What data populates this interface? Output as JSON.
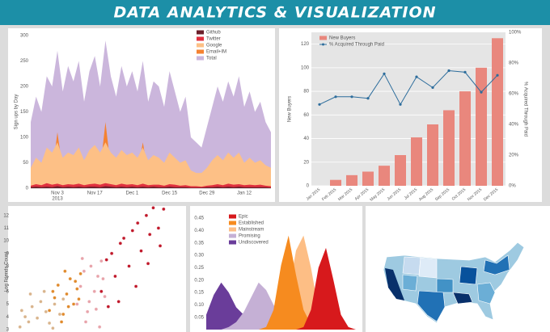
{
  "header": {
    "title": "DATA ANALYTICS & VISUALIZATION"
  },
  "chart_data": [
    {
      "type": "area",
      "y_label": "Sign ups by Day",
      "categories": [
        null,
        null,
        null,
        null,
        null,
        "Nov 3",
        null,
        null,
        null,
        null,
        null,
        null,
        "Nov 17",
        null,
        null,
        null,
        null,
        null,
        null,
        "Dec 1",
        null,
        null,
        null,
        null,
        null,
        null,
        "Dec 15",
        null,
        null,
        null,
        null,
        null,
        null,
        "Dec 29",
        null,
        null,
        null,
        null,
        null,
        null,
        "Jan 12",
        null,
        null,
        null,
        null,
        null
      ],
      "year": "2013",
      "ylim": [
        0,
        300
      ],
      "yticks": [
        0,
        50,
        100,
        150,
        200,
        250,
        300
      ],
      "legend": "upper right",
      "series": [
        {
          "name": "Github",
          "color": "#6b1f2a",
          "values": [
            2,
            3,
            2,
            3,
            2,
            4,
            2,
            3,
            2,
            3,
            2,
            3,
            3,
            2,
            4,
            3,
            2,
            3,
            2,
            3,
            2,
            3,
            2,
            3,
            2,
            2,
            3,
            2,
            2,
            2,
            1,
            1,
            1,
            2,
            2,
            3,
            2,
            3,
            2,
            3,
            2,
            2,
            2,
            2,
            2,
            1
          ]
        },
        {
          "name": "Twitter",
          "color": "#e0303f",
          "values": [
            5,
            8,
            6,
            10,
            7,
            9,
            6,
            8,
            7,
            9,
            6,
            8,
            9,
            7,
            10,
            8,
            6,
            9,
            7,
            8,
            6,
            9,
            6,
            7,
            7,
            5,
            8,
            7,
            5,
            6,
            4,
            4,
            3,
            5,
            6,
            8,
            6,
            9,
            7,
            8,
            6,
            7,
            6,
            7,
            5,
            4
          ]
        },
        {
          "name": "Google",
          "color": "#fdc086",
          "values": [
            40,
            60,
            50,
            80,
            70,
            90,
            60,
            70,
            65,
            80,
            55,
            75,
            85,
            70,
            90,
            70,
            60,
            75,
            65,
            70,
            60,
            80,
            55,
            65,
            60,
            50,
            70,
            60,
            50,
            55,
            35,
            30,
            30,
            40,
            55,
            65,
            55,
            70,
            60,
            70,
            50,
            60,
            50,
            55,
            45,
            40
          ]
        },
        {
          "name": "Email+IM",
          "color": "#f58231",
          "values": [
            20,
            30,
            25,
            60,
            30,
            110,
            35,
            40,
            30,
            80,
            30,
            45,
            50,
            35,
            130,
            40,
            30,
            50,
            35,
            45,
            30,
            90,
            30,
            35,
            30,
            25,
            60,
            30,
            25,
            30,
            20,
            15,
            15,
            20,
            30,
            40,
            30,
            70,
            35,
            45,
            30,
            35,
            30,
            35,
            25,
            20
          ]
        },
        {
          "name": "Total",
          "color": "#cbb6dc",
          "values": [
            130,
            180,
            150,
            220,
            200,
            270,
            190,
            240,
            210,
            250,
            170,
            230,
            260,
            200,
            290,
            220,
            180,
            240,
            200,
            230,
            190,
            250,
            170,
            210,
            200,
            160,
            230,
            190,
            150,
            180,
            100,
            90,
            80,
            120,
            160,
            200,
            170,
            210,
            180,
            220,
            160,
            190,
            150,
            170,
            130,
            110
          ]
        }
      ]
    },
    {
      "type": "bar_line",
      "y_label": "New Buyers",
      "y2_label": "% Acquired Through Paid",
      "categories": [
        "Jan 2015",
        "Feb 2015",
        "Mar 2015",
        "Apr 2015",
        "May 2015",
        "Jun 2015",
        "Jul 2015",
        "Aug 2015",
        "Sep 2015",
        "Oct 2015",
        "Nov 2015",
        "Dec 2015"
      ],
      "ylim": [
        0,
        130
      ],
      "yticks": [
        0,
        20,
        40,
        60,
        80,
        100,
        120
      ],
      "y2lim": [
        0,
        100
      ],
      "y2ticks": [
        {
          "value": 0,
          "label": "0%"
        },
        {
          "value": 20,
          "label": "20%"
        },
        {
          "value": 40,
          "label": "40%"
        },
        {
          "value": 60,
          "label": "60%"
        },
        {
          "value": 80,
          "label": "80%"
        },
        {
          "value": 100,
          "label": "100%"
        }
      ],
      "grid": true,
      "legend": "upper left",
      "series": [
        {
          "name": "New Buyers",
          "color": "#e9877d",
          "values": [
            0,
            5,
            9,
            12,
            17,
            26,
            41,
            52,
            64,
            80,
            100,
            125
          ]
        },
        {
          "name": "% Acquired Through Paid",
          "color": "#2d6d9c",
          "axis": "y2",
          "values": [
            53,
            58,
            58,
            57,
            73,
            53,
            71,
            64,
            75,
            74,
            61,
            72
          ]
        }
      ]
    },
    {
      "type": "scatter",
      "y_label": "Log Friends Count",
      "xlim": [
        0,
        10
      ],
      "ylim": [
        2.8,
        12.3
      ],
      "yticks": [
        3,
        4,
        5,
        6,
        7,
        8,
        9,
        10,
        11,
        12
      ],
      "series": [
        {
          "color": "#d9b48c",
          "x": [
            0.5,
            0.8,
            1.0,
            1.2,
            1.5,
            1.7,
            2.0,
            2.2,
            2.5,
            2.8,
            1.1,
            1.9,
            0.6,
            2.4,
            3.0
          ],
          "values": [
            3.2,
            4.0,
            3.6,
            4.8,
            3.9,
            5.2,
            4.4,
            3.5,
            5.0,
            4.2,
            5.8,
            6.0,
            4.5,
            3.1,
            5.4
          ]
        },
        {
          "color": "#e08a2c",
          "x": [
            2.2,
            2.5,
            2.7,
            3.0,
            3.2,
            3.4,
            3.6,
            3.8,
            4.0,
            2.9,
            3.3,
            3.7,
            2.4,
            3.1,
            3.9
          ],
          "values": [
            4.5,
            5.5,
            6.5,
            4.2,
            5.8,
            7.0,
            5.0,
            6.2,
            7.4,
            3.6,
            4.8,
            6.8,
            6.0,
            7.6,
            5.4
          ]
        },
        {
          "color": "#e8a3aa",
          "x": [
            3.8,
            4.0,
            4.2,
            4.4,
            4.6,
            4.8,
            5.0,
            5.2,
            5.4,
            4.1,
            4.5,
            4.9,
            5.3,
            4.3,
            5.1
          ],
          "values": [
            5.0,
            6.4,
            7.6,
            4.4,
            8.0,
            6.0,
            7.2,
            8.4,
            5.6,
            8.6,
            5.2,
            4.6,
            7.0,
            3.6,
            3.2
          ]
        },
        {
          "color": "#c0182a",
          "x": [
            5.2,
            5.5,
            5.8,
            6.0,
            6.3,
            6.5,
            6.8,
            7.0,
            7.3,
            7.5,
            7.8,
            8.0,
            8.2,
            8.5,
            8.8,
            5.6,
            6.2,
            7.2,
            7.9,
            8.6
          ],
          "values": [
            6.0,
            8.5,
            9.0,
            7.2,
            9.8,
            10.2,
            8.0,
            10.8,
            11.4,
            9.2,
            12.0,
            10.5,
            12.6,
            11.0,
            12.5,
            4.8,
            5.2,
            6.4,
            8.2,
            9.6
          ]
        }
      ]
    },
    {
      "type": "density",
      "x": [
        0,
        1,
        2,
        3,
        4,
        5,
        6,
        7,
        8,
        9,
        10,
        11,
        12,
        13,
        14,
        15,
        16,
        17,
        18,
        19,
        20
      ],
      "xlim": [
        0,
        20
      ],
      "ylim": [
        0,
        0.47
      ],
      "yticks": [
        0.05,
        {
          "value": 0.1,
          "label": "0.10"
        },
        0.15,
        {
          "value": 0.2,
          "label": "0.20"
        },
        0.25,
        {
          "value": 0.3,
          "label": "0.30"
        },
        0.35,
        {
          "value": 0.4,
          "label": "0.40"
        },
        0.45
      ],
      "legend": "upper left",
      "series": [
        {
          "name": "Epic",
          "color": "#d7191c",
          "values": [
            0,
            0,
            0,
            0,
            0,
            0,
            0,
            0,
            0,
            0,
            0,
            0,
            0,
            0.01,
            0.08,
            0.25,
            0.33,
            0.2,
            0.06,
            0.01,
            0
          ]
        },
        {
          "name": "Established",
          "color": "#f68b1f",
          "values": [
            0,
            0,
            0,
            0,
            0,
            0,
            0,
            0,
            0.01,
            0.08,
            0.26,
            0.38,
            0.22,
            0.08,
            0.02,
            0.01,
            0,
            0,
            0,
            0,
            0
          ]
        },
        {
          "name": "Mainstream",
          "color": "#fdbe85",
          "values": [
            0,
            0,
            0,
            0,
            0,
            0,
            0,
            0,
            0,
            0.01,
            0.03,
            0.15,
            0.32,
            0.38,
            0.25,
            0.08,
            0.02,
            0,
            0,
            0,
            0
          ]
        },
        {
          "name": "Promising",
          "color": "#c5b0d5",
          "values": [
            0,
            0,
            0,
            0.01,
            0.03,
            0.07,
            0.13,
            0.19,
            0.16,
            0.1,
            0.05,
            0.02,
            0.01,
            0,
            0,
            0,
            0,
            0,
            0,
            0,
            0
          ]
        },
        {
          "name": "Undiscovered",
          "color": "#6a3d9a",
          "values": [
            0.06,
            0.14,
            0.19,
            0.15,
            0.09,
            0.06,
            0.04,
            0.02,
            0.01,
            0,
            0,
            0,
            0,
            0,
            0,
            0,
            0,
            0,
            0,
            0,
            0
          ]
        }
      ]
    }
  ]
}
